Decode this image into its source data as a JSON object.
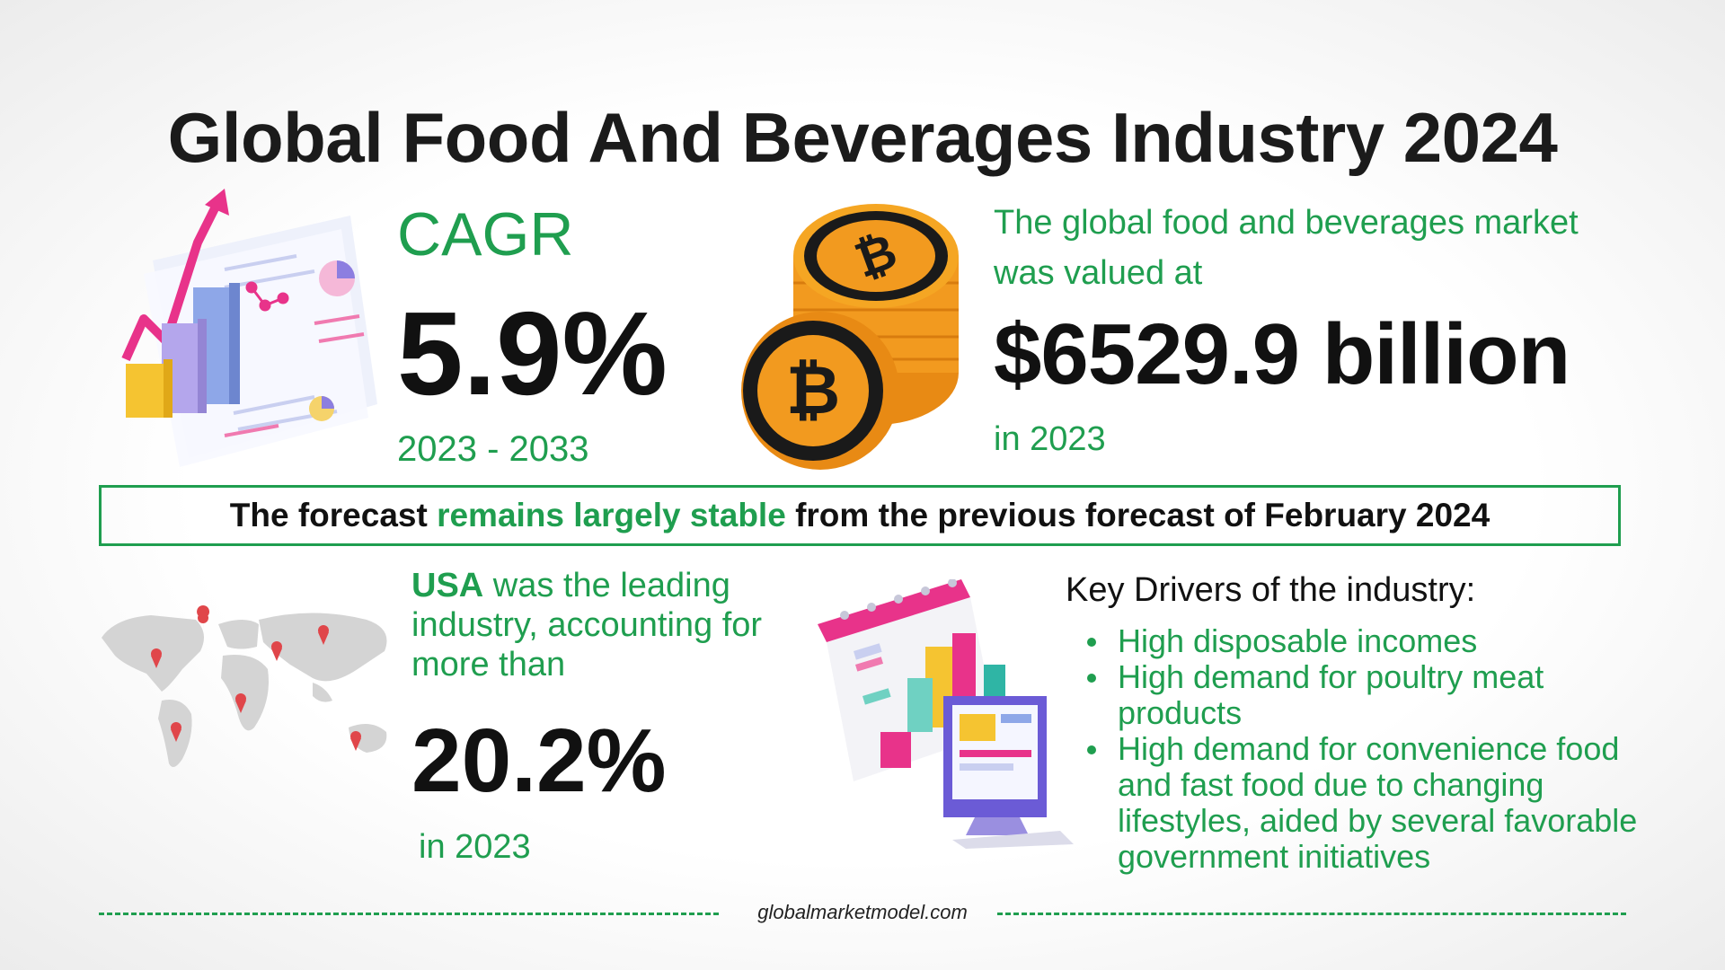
{
  "title": "Global Food And Beverages Industry 2024",
  "cagr": {
    "label": "CAGR",
    "value": "5.9%",
    "period": "2023 - 2033"
  },
  "market": {
    "description": "The global food and beverages market was valued at",
    "value": "$6529.9 billion",
    "year": "in 2023"
  },
  "forecast": {
    "prefix": "The forecast",
    "highlight": "remains largely stable",
    "suffix": "from the previous forecast of February 2024"
  },
  "usa": {
    "country": "USA",
    "description": "was the leading industry, accounting for more than",
    "value": "20.2%",
    "year": "in 2023"
  },
  "drivers": {
    "title": "Key Drivers of the industry:",
    "items": [
      "High disposable incomes",
      "High demand for poultry meat products",
      "High demand for convenience food and fast food due to changing lifestyles, aided by several favorable government initiatives"
    ]
  },
  "footer": {
    "site": "globalmarketmodel.com"
  },
  "colors": {
    "accent": "#1f9e4f",
    "text": "#111111",
    "coin": "#f29a1f",
    "pink": "#e8338a"
  },
  "icons": [
    "growth-chart-illustration",
    "bitcoin-coins-icon",
    "world-map-illustration",
    "calendar-dashboard-illustration"
  ]
}
